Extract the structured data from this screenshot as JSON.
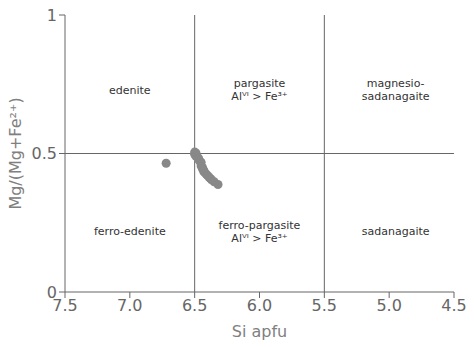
{
  "chart_data": {
    "type": "scatter",
    "xlabel": "Si apfu",
    "ylabel": "Mg/(Mg+Fe²⁺)",
    "xlim": [
      7.5,
      4.5
    ],
    "ylim": [
      0,
      1
    ],
    "xticks": [
      7.5,
      {
        "value": 7.0,
        "label": "7.0"
      },
      6.5,
      {
        "value": 6.0,
        "label": "6.0"
      },
      5.5,
      {
        "value": 5.0,
        "label": "5.0"
      },
      4.5
    ],
    "yticks": [
      0,
      0.5,
      1
    ],
    "vlines": [
      6.5,
      5.5
    ],
    "hlines": [
      0.5
    ],
    "annotations": [
      {
        "text": "edenite",
        "x": 7.0,
        "y": 0.73
      },
      {
        "text": "pargasite\nAlⱽᴵ > Fe³⁺",
        "x": 6.0,
        "y": 0.73
      },
      {
        "text": "magnesio-\nsadanagaite",
        "x": 4.95,
        "y": 0.73
      },
      {
        "text": "ferro-edenite",
        "x": 7.0,
        "y": 0.22
      },
      {
        "text": "ferro-pargasite\nAlⱽᴵ > Fe³⁺",
        "x": 6.0,
        "y": 0.22
      },
      {
        "text": "sadanagaite",
        "x": 4.95,
        "y": 0.22
      }
    ],
    "x": [
      6.72,
      6.5,
      6.5,
      6.49,
      6.49,
      6.48,
      6.47,
      6.47,
      6.46,
      6.45,
      6.45,
      6.44,
      6.44,
      6.43,
      6.43,
      6.42,
      6.41,
      6.4,
      6.39,
      6.38,
      6.37,
      6.35,
      6.32
    ],
    "values": [
      0.465,
      0.505,
      0.497,
      0.502,
      0.49,
      0.488,
      0.483,
      0.478,
      0.472,
      0.468,
      0.455,
      0.45,
      0.445,
      0.44,
      0.435,
      0.43,
      0.425,
      0.42,
      0.415,
      0.41,
      0.405,
      0.398,
      0.388
    ],
    "color": "#888888",
    "grid": false
  }
}
